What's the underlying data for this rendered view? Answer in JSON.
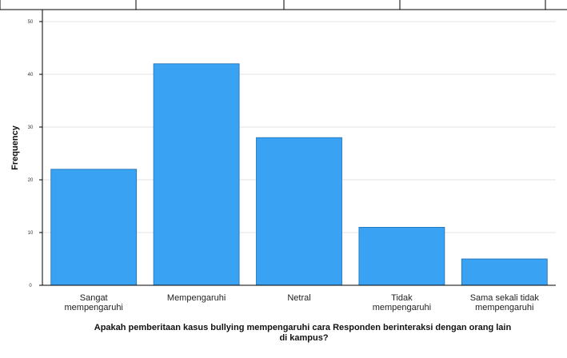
{
  "chart_data": {
    "type": "bar",
    "categories": [
      [
        "Sangat",
        "mempengaruhi"
      ],
      [
        "Mempengaruhi"
      ],
      [
        "Netral"
      ],
      [
        "Tidak",
        "mempengaruhi"
      ],
      [
        "Sama sekali tidak",
        "mempengaruhi"
      ]
    ],
    "values": [
      22,
      42,
      28,
      11,
      5
    ],
    "ylabel": "Frequency",
    "xlabel": [
      "Apakah pemberitaan kasus bullying mempengaruhi cara Responden berinteraksi dengan orang lain",
      "di kampus?"
    ],
    "ylim": [
      0,
      50
    ],
    "yticks": [
      "0",
      "10",
      "20",
      "30",
      "40",
      "50"
    ],
    "grid": true,
    "bar_color": "#3aa2f2",
    "bar_edge_color": "#1f6fb2"
  }
}
